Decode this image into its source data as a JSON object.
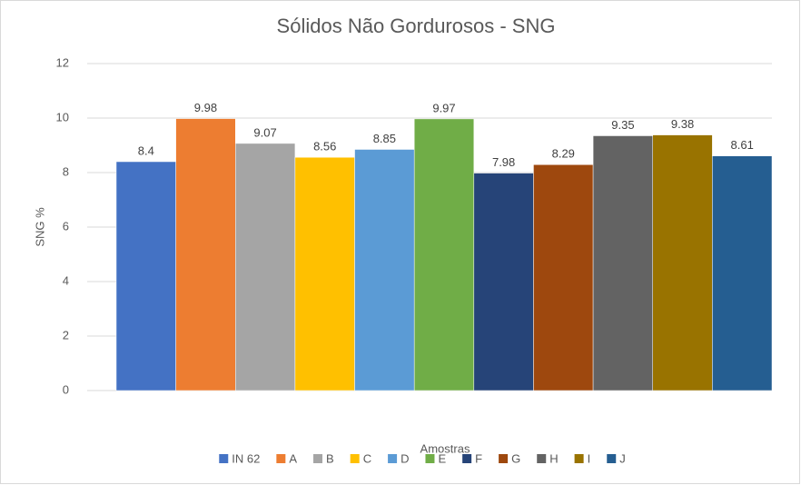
{
  "chart_data": {
    "type": "bar",
    "title": "Sólidos Não Gordurosos - SNG",
    "x_label": "Amostras",
    "y_label": "SNG %",
    "categories": [
      null
    ],
    "series": [
      {
        "name": "IN 62",
        "color": "#4472c4",
        "values": [
          8.4
        ]
      },
      {
        "name": "A",
        "color": "#ed7d31",
        "values": [
          9.98
        ]
      },
      {
        "name": "B",
        "color": "#a5a5a5",
        "values": [
          9.07
        ]
      },
      {
        "name": "C",
        "color": "#ffc000",
        "values": [
          8.56
        ]
      },
      {
        "name": "D",
        "color": "#5b9bd5",
        "values": [
          8.85
        ]
      },
      {
        "name": "E",
        "color": "#70ad47",
        "values": [
          9.97
        ]
      },
      {
        "name": "F",
        "color": "#264478",
        "values": [
          7.98
        ]
      },
      {
        "name": "G",
        "color": "#9e480e",
        "values": [
          8.29
        ]
      },
      {
        "name": "H",
        "color": "#636363",
        "values": [
          9.35
        ]
      },
      {
        "name": "I",
        "color": "#997300",
        "values": [
          9.38
        ]
      },
      {
        "name": "J",
        "color": "#255e91",
        "values": [
          8.61
        ]
      }
    ],
    "ylim": [
      0,
      12
    ],
    "yticks": [
      0,
      2,
      4,
      6,
      8,
      10,
      12
    ],
    "grid": true,
    "legend": "bottom"
  }
}
